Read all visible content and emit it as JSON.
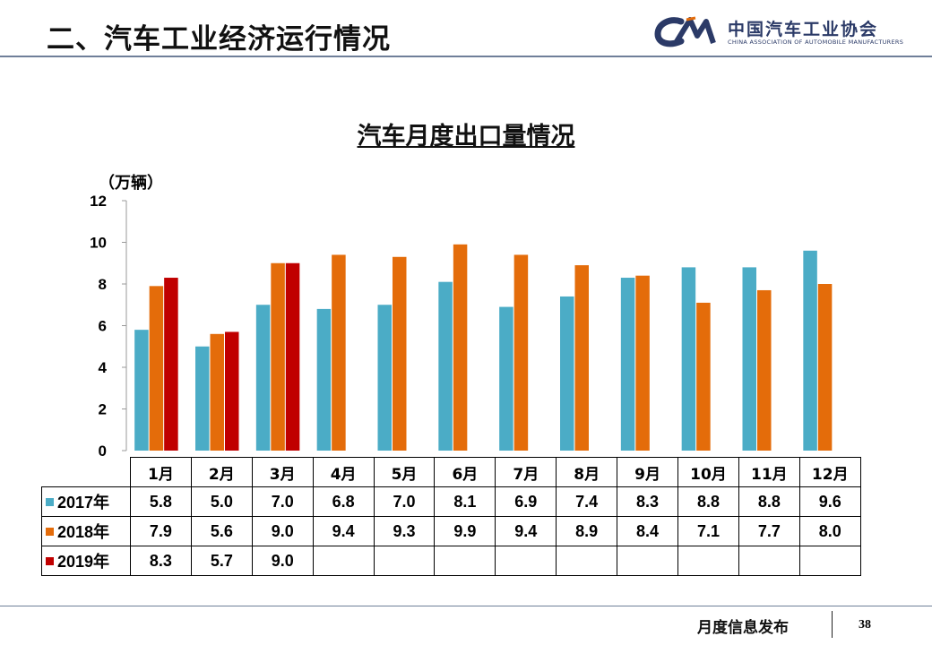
{
  "slide": {
    "title": "二、汽车工业经济运行情况",
    "logo_name_cn": "中国汽车工业协会",
    "logo_name_en": "CHINA ASSOCIATION OF AUTOMOBILE MANUFACTURERS",
    "footer_text": "月度信息发布",
    "page_number": "38"
  },
  "chart_data": {
    "type": "bar",
    "title": "汽车月度出口量情况",
    "ylabel": "（万辆）",
    "ylim": [
      0,
      12
    ],
    "yticks": [
      0,
      2,
      4,
      6,
      8,
      10,
      12
    ],
    "grid": false,
    "categories": [
      "1月",
      "2月",
      "3月",
      "4月",
      "5月",
      "6月",
      "7月",
      "8月",
      "9月",
      "10月",
      "11月",
      "12月"
    ],
    "series": [
      {
        "name": "2017年",
        "color": "#4bacc6",
        "values": [
          5.8,
          5.0,
          7.0,
          6.8,
          7.0,
          8.1,
          6.9,
          7.4,
          8.3,
          8.8,
          8.8,
          9.6
        ]
      },
      {
        "name": "2018年",
        "color": "#e46c0a",
        "values": [
          7.9,
          5.6,
          9.0,
          9.4,
          9.3,
          9.9,
          9.4,
          8.9,
          8.4,
          7.1,
          7.7,
          8.0
        ]
      },
      {
        "name": "2019年",
        "color": "#c00000",
        "values": [
          8.3,
          5.7,
          9.0,
          null,
          null,
          null,
          null,
          null,
          null,
          null,
          null,
          null
        ]
      }
    ]
  }
}
